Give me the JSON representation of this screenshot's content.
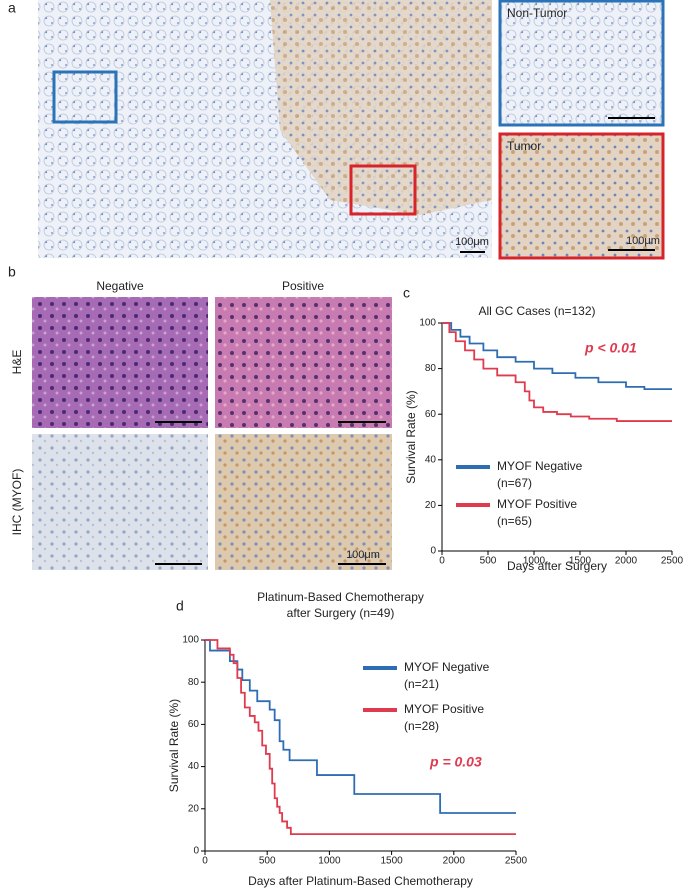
{
  "figure": {
    "panel_a": {
      "label": "a",
      "inset_top": "Non-Tumor",
      "inset_bottom": "Tumor",
      "scale_main": "100μm",
      "scale_inset": "100μm"
    },
    "panel_b": {
      "label": "b",
      "col_left": "Negative",
      "col_right": "Positive",
      "row_top": "H&E",
      "row_bottom": "IHC (MYOF)",
      "scale": "100μm"
    },
    "panel_c": {
      "label": "c"
    },
    "panel_d": {
      "label": "d"
    }
  },
  "chart_data": [
    {
      "type": "km",
      "title": [
        "All GC Cases (n=132)"
      ],
      "x_label": "Days after Surgery",
      "y_label": "Survival Rate (%)",
      "xlim": [
        0,
        2500
      ],
      "ylim": [
        0,
        100
      ],
      "xticks": [
        0,
        500,
        1000,
        1500,
        2000,
        2500
      ],
      "yticks": [
        0,
        20,
        40,
        60,
        80,
        100
      ],
      "legend": "lower left",
      "annotation": "p < 0.01",
      "annotation_color": "#e03a4e",
      "series": [
        {
          "name": "MYOF Negative",
          "n_label": "(n=67)",
          "color": "#2f6db3",
          "x": [
            0,
            100,
            200,
            300,
            450,
            600,
            800,
            1000,
            1200,
            1450,
            1700,
            2000,
            2200,
            2500
          ],
          "values": [
            100,
            97,
            94,
            91,
            88,
            85,
            83,
            80,
            78,
            76,
            74,
            72,
            71,
            71
          ]
        },
        {
          "name": "MYOF Positive",
          "n_label": "(n=65)",
          "color": "#e03a4e",
          "x": [
            0,
            80,
            150,
            250,
            350,
            450,
            600,
            800,
            900,
            950,
            1000,
            1100,
            1250,
            1400,
            1600,
            1900,
            2500
          ],
          "values": [
            100,
            96,
            92,
            88,
            84,
            80,
            77,
            74,
            70,
            66,
            63,
            61,
            60,
            59,
            58,
            57,
            57
          ]
        }
      ]
    },
    {
      "type": "km",
      "title": [
        "Platinum-Based Chemotherapy",
        "after Surgery (n=49)"
      ],
      "x_label": "Days after Platinum-Based Chemotherapy",
      "y_label": "Survival Rate (%)",
      "xlim": [
        0,
        2500
      ],
      "ylim": [
        0,
        100
      ],
      "xticks": [
        0,
        500,
        1000,
        1500,
        2000,
        2500
      ],
      "yticks": [
        0,
        20,
        40,
        60,
        80,
        100
      ],
      "legend": "upper right",
      "annotation": "p = 0.03",
      "annotation_color": "#e03a4e",
      "series": [
        {
          "name": "MYOF Negative",
          "n_label": "(n=21)",
          "color": "#2f6db3",
          "x": [
            0,
            40,
            200,
            260,
            300,
            360,
            420,
            520,
            560,
            600,
            630,
            680,
            900,
            1200,
            1890,
            2500
          ],
          "values": [
            100,
            95,
            90,
            86,
            81,
            76,
            71,
            67,
            62,
            52,
            48,
            43,
            36,
            27,
            18,
            18
          ]
        },
        {
          "name": "MYOF Positive",
          "n_label": "(n=28)",
          "color": "#e03a4e",
          "x": [
            0,
            100,
            200,
            230,
            260,
            290,
            320,
            360,
            400,
            430,
            460,
            490,
            520,
            540,
            560,
            580,
            600,
            620,
            660,
            690,
            720,
            2500
          ],
          "values": [
            100,
            96,
            93,
            89,
            82,
            75,
            68,
            64,
            61,
            57,
            50,
            46,
            39,
            32,
            25,
            21,
            18,
            14,
            11,
            8,
            8,
            8
          ]
        }
      ]
    }
  ]
}
